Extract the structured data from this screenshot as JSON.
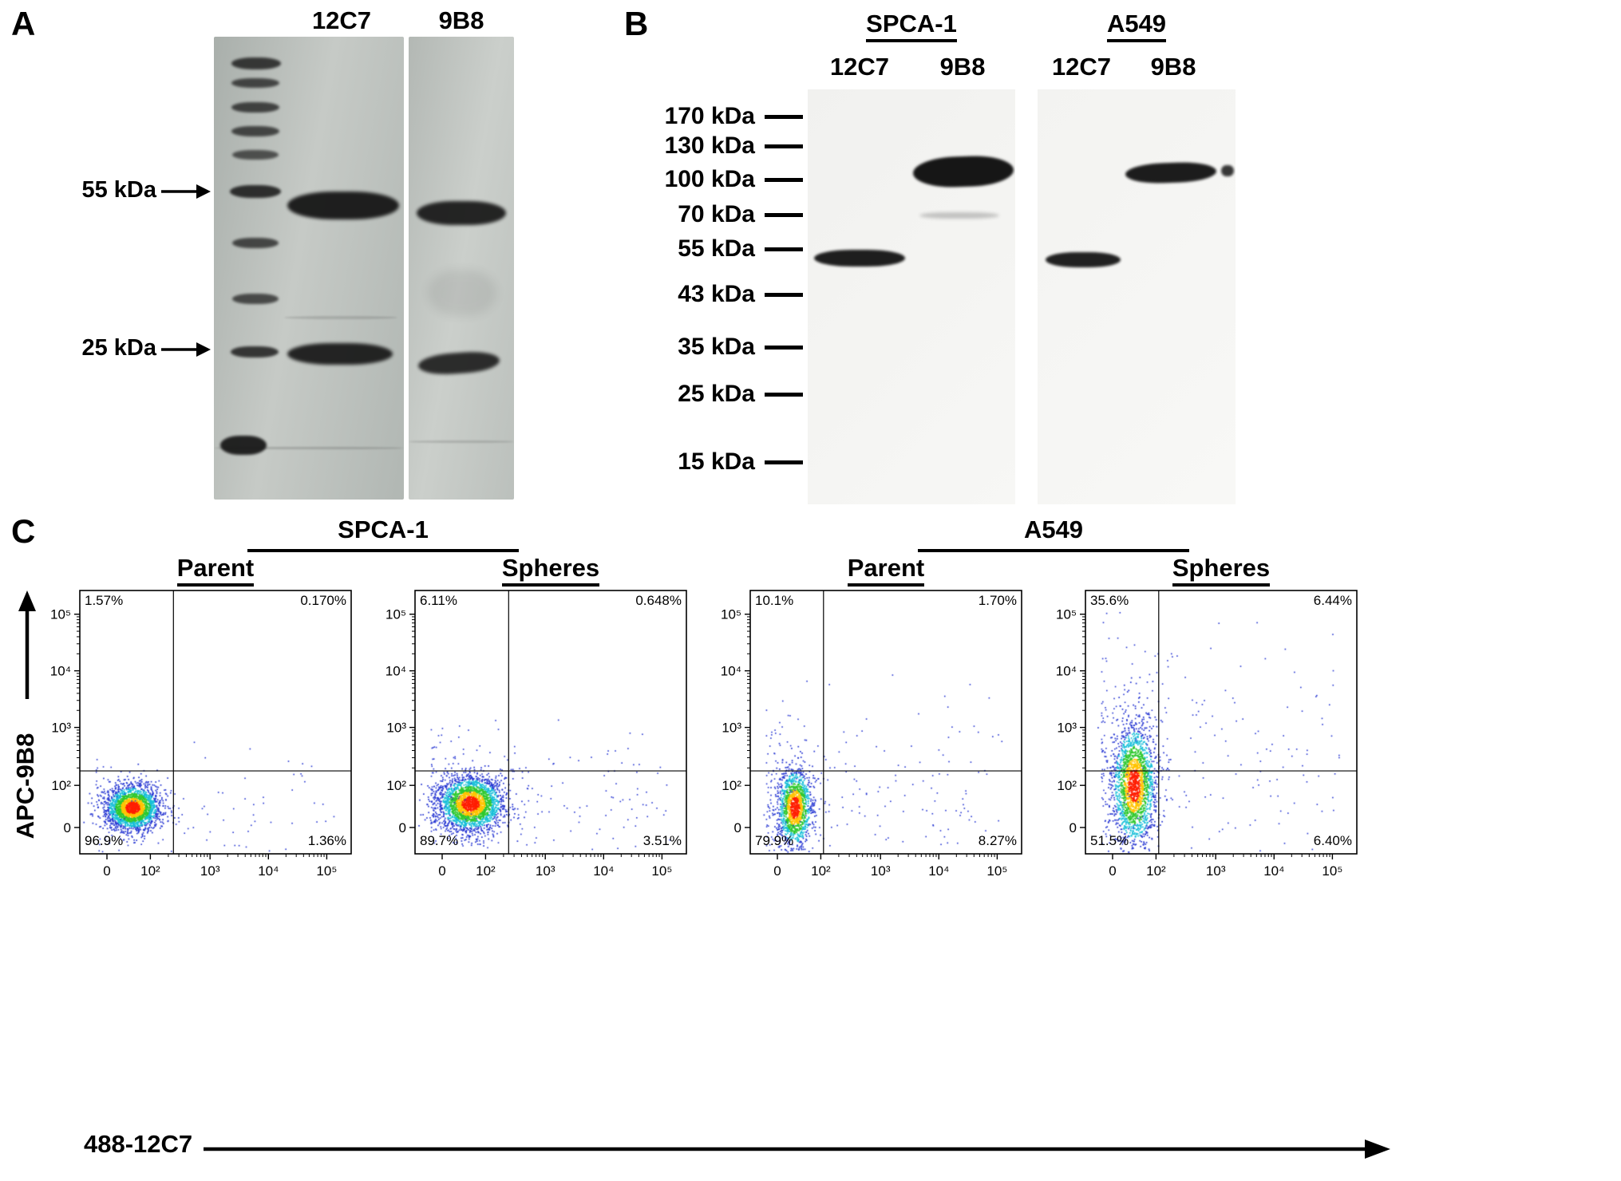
{
  "panel_a": {
    "label": "A",
    "lane_labels": [
      "12C7",
      "9B8"
    ],
    "markers": [
      {
        "label": "55 kDa"
      },
      {
        "label": "25 kDa"
      }
    ]
  },
  "panel_b": {
    "label": "B",
    "groups": [
      {
        "cell_line": "SPCA-1",
        "lanes": [
          "12C7",
          "9B8"
        ]
      },
      {
        "cell_line": "A549",
        "lanes": [
          "12C7",
          "9B8"
        ]
      }
    ],
    "markers": [
      "170 kDa",
      "130 kDa",
      "100 kDa",
      "70 kDa",
      "55 kDa",
      "43 kDa",
      "35 kDa",
      "25 kDa",
      "15 kDa"
    ]
  },
  "panel_c": {
    "label": "C",
    "group_headers": [
      "SPCA-1",
      "A549"
    ],
    "condition_headers": [
      "Parent",
      "Spheres",
      "Parent",
      "Spheres"
    ],
    "x_axis_label": "488-12C7",
    "y_axis_label": "APC-9B8"
  },
  "chart_data": [
    {
      "type": "scatter",
      "subtype": "flow_cytometry_pseudocolor",
      "title": "SPCA-1 Parent",
      "cell_line": "SPCA-1",
      "condition": "Parent",
      "xlabel": "488-12C7",
      "ylabel": "APC-9B8",
      "x_ticks": [
        "0",
        "10²",
        "10³",
        "10⁴",
        "10⁵"
      ],
      "y_ticks": [
        "0",
        "10²",
        "10³",
        "10⁴",
        "10⁵"
      ],
      "quadrant_percent": {
        "upper_left": "1.57%",
        "upper_right": "0.170%",
        "lower_left": "96.9%",
        "lower_right": "1.36%"
      },
      "gate": {
        "x": 0.345,
        "y": 0.315
      },
      "cluster": {
        "cx": 0.195,
        "cy": 0.175,
        "sx": 0.05,
        "sy": 0.042,
        "n": 2300,
        "seed": 7
      },
      "halo": {
        "n": 130,
        "seed": 17
      }
    },
    {
      "type": "scatter",
      "subtype": "flow_cytometry_pseudocolor",
      "title": "SPCA-1 Spheres",
      "cell_line": "SPCA-1",
      "condition": "Spheres",
      "xlabel": "488-12C7",
      "ylabel": "APC-9B8",
      "x_ticks": [
        "0",
        "10²",
        "10³",
        "10⁴",
        "10⁵"
      ],
      "y_ticks": [
        "0",
        "10²",
        "10³",
        "10⁴",
        "10⁵"
      ],
      "quadrant_percent": {
        "upper_left": "6.11%",
        "upper_right": "0.648%",
        "lower_left": "89.7%",
        "lower_right": "3.51%"
      },
      "gate": {
        "x": 0.345,
        "y": 0.315
      },
      "cluster": {
        "cx": 0.205,
        "cy": 0.19,
        "sx": 0.06,
        "sy": 0.052,
        "n": 2600,
        "seed": 8
      },
      "halo": {
        "n": 260,
        "seed": 18
      }
    },
    {
      "type": "scatter",
      "subtype": "flow_cytometry_pseudocolor",
      "title": "A549 Parent",
      "cell_line": "A549",
      "condition": "Parent",
      "xlabel": "488-12C7",
      "ylabel": "APC-9B8",
      "x_ticks": [
        "0",
        "10²",
        "10³",
        "10⁴",
        "10⁵"
      ],
      "y_ticks": [
        "0",
        "10²",
        "10³",
        "10⁴",
        "10⁵"
      ],
      "quadrant_percent": {
        "upper_left": "10.1%",
        "upper_right": "1.70%",
        "lower_left": "79.9%",
        "lower_right": "8.27%"
      },
      "gate": {
        "x": 0.27,
        "y": 0.315
      },
      "cluster": {
        "cx": 0.165,
        "cy": 0.175,
        "sx": 0.032,
        "sy": 0.075,
        "n": 1500,
        "seed": 9
      },
      "halo": {
        "n": 280,
        "seed": 19
      }
    },
    {
      "type": "scatter",
      "subtype": "flow_cytometry_pseudocolor",
      "title": "A549 Spheres",
      "cell_line": "A549",
      "condition": "Spheres",
      "xlabel": "488-12C7",
      "ylabel": "APC-9B8",
      "x_ticks": [
        "0",
        "10²",
        "10³",
        "10⁴",
        "10⁵"
      ],
      "y_ticks": [
        "0",
        "10²",
        "10³",
        "10⁴",
        "10⁵"
      ],
      "quadrant_percent": {
        "upper_left": "35.6%",
        "upper_right": "6.44%",
        "lower_left": "51.5%",
        "lower_right": "6.40%"
      },
      "gate": {
        "x": 0.27,
        "y": 0.315
      },
      "cluster": {
        "cx": 0.18,
        "cy": 0.26,
        "sx": 0.04,
        "sy": 0.115,
        "n": 2200,
        "seed": 10
      },
      "halo": {
        "n": 320,
        "seed": 20
      }
    }
  ]
}
